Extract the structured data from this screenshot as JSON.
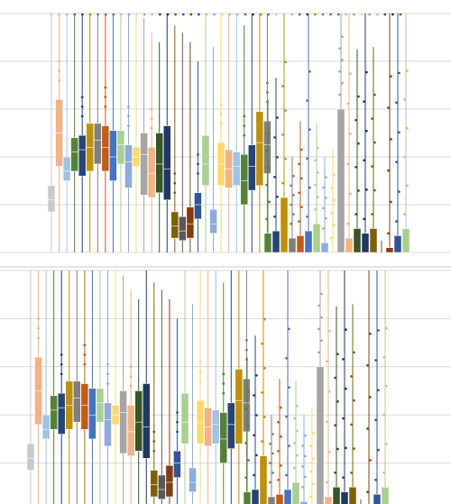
{
  "chart_data": [
    {
      "type": "boxplot",
      "title": "",
      "xlabel": "",
      "ylabel": "",
      "ylim": [
        0,
        100
      ],
      "grid": true,
      "legend": "none",
      "colors": [
        "#c9c9c9",
        "#f4b183",
        "#9dc3e6",
        "#548235",
        "#264478",
        "#bf9000",
        "#7f7f7f",
        "#c55a11",
        "#4472c4",
        "#a9d18e",
        "#8faadc",
        "#ffd966",
        "#a5a5a5",
        "#f4b183",
        "#375623",
        "#1f3864",
        "#7f6000",
        "#595959",
        "#843c0c",
        "#2f5597",
        "#a9d18e",
        "#8faadc",
        "#ffd966",
        "#f4b183",
        "#9dc3e6",
        "#548235",
        "#264478",
        "#bf9000",
        "#7f7f7f"
      ],
      "boxes": [
        {
          "q1": 17,
          "q3": 28,
          "med": 22,
          "min": 0,
          "max": 100,
          "mean": 23
        },
        {
          "q1": 36,
          "q3": 64,
          "med": 50,
          "min": 0,
          "max": 100,
          "mean": 48
        },
        {
          "q1": 30,
          "q3": 40,
          "med": 34,
          "min": 0,
          "max": 100,
          "mean": 35
        },
        {
          "q1": 34,
          "q3": 48,
          "med": 42,
          "min": 0,
          "max": 100,
          "mean": 41
        },
        {
          "q1": 32,
          "q3": 49,
          "med": 43,
          "min": 0,
          "max": 100,
          "mean": 41
        },
        {
          "q1": 34,
          "q3": 54,
          "med": 44,
          "min": 0,
          "max": 100,
          "mean": 44
        },
        {
          "q1": 37,
          "q3": 54,
          "med": 47,
          "min": 0,
          "max": 100,
          "mean": 46
        },
        {
          "q1": 34,
          "q3": 53,
          "med": 44,
          "min": 0,
          "max": 100,
          "mean": 44
        },
        {
          "q1": 30,
          "q3": 51,
          "med": 40,
          "min": 0,
          "max": 100,
          "mean": 40
        },
        {
          "q1": 37,
          "q3": 51,
          "med": 45,
          "min": 0,
          "max": 100,
          "mean": 45
        },
        {
          "q1": 27,
          "q3": 45,
          "med": 38,
          "min": 0,
          "max": 100,
          "mean": 37
        },
        {
          "q1": 36,
          "q3": 44,
          "med": 40,
          "min": 0,
          "max": 100,
          "mean": 40
        },
        {
          "q1": 24,
          "q3": 50,
          "med": 41,
          "min": 0,
          "max": 98,
          "mean": 39
        },
        {
          "q1": 23,
          "q3": 44,
          "med": 33,
          "min": 0,
          "max": 92,
          "mean": 33
        },
        {
          "q1": 25,
          "q3": 50,
          "med": 37,
          "min": 0,
          "max": 88,
          "mean": 37
        },
        {
          "q1": 22,
          "q3": 53,
          "med": 35,
          "min": 0,
          "max": 100,
          "mean": 36
        },
        {
          "q1": 6,
          "q3": 17,
          "med": 11,
          "min": 0,
          "max": 95,
          "mean": 11
        },
        {
          "q1": 5,
          "q3": 15,
          "med": 9,
          "min": 0,
          "max": 92,
          "mean": 10
        },
        {
          "q1": 6,
          "q3": 19,
          "med": 12,
          "min": 0,
          "max": 88,
          "mean": 12
        },
        {
          "q1": 14,
          "q3": 25,
          "med": 20,
          "min": 0,
          "max": 80,
          "mean": 20
        },
        {
          "q1": 28,
          "q3": 49,
          "med": 37,
          "min": 0,
          "max": 100,
          "mean": 38
        },
        {
          "q1": 8,
          "q3": 18,
          "med": 12,
          "min": 0,
          "max": 86,
          "mean": 12
        },
        {
          "q1": 28,
          "q3": 46,
          "med": 37,
          "min": 0,
          "max": 100,
          "mean": 37
        },
        {
          "q1": 27,
          "q3": 43,
          "med": 35,
          "min": 0,
          "max": 100,
          "mean": 35
        },
        {
          "q1": 28,
          "q3": 42,
          "med": 36,
          "min": 0,
          "max": 100,
          "mean": 36
        },
        {
          "q1": 20,
          "q3": 41,
          "med": 30,
          "min": 0,
          "max": 95,
          "mean": 30
        },
        {
          "q1": 26,
          "q3": 45,
          "med": 36,
          "min": 0,
          "max": 100,
          "mean": 36
        },
        {
          "q1": 28,
          "q3": 59,
          "med": 46,
          "min": 0,
          "max": 100,
          "mean": 45
        },
        {
          "q1": 33,
          "q3": 55,
          "med": 45,
          "min": 0,
          "max": 100,
          "mean": 45
        }
      ],
      "extra_series": [
        {
          "q1": 0,
          "q3": 8,
          "med": 2,
          "max": 64
        },
        {
          "q1": 0,
          "q3": 9,
          "med": 3,
          "max": 73
        },
        {
          "q1": 0,
          "q3": 23,
          "med": 3,
          "max": 100
        },
        {
          "q1": 0,
          "q3": 6,
          "med": 1,
          "max": 40
        },
        {
          "q1": 0,
          "q3": 7,
          "med": 2,
          "max": 55
        },
        {
          "q1": 0,
          "q3": 9,
          "med": 2,
          "max": 100
        },
        {
          "q1": 0,
          "q3": 12,
          "med": 2,
          "max": 54
        },
        {
          "q1": 0,
          "q3": 4,
          "med": 1,
          "max": 40
        },
        {
          "q1": 0,
          "q3": 0,
          "med": 0,
          "max": 43
        },
        {
          "q1": 0,
          "q3": 60,
          "med": 4,
          "max": 100
        },
        {
          "q1": 0,
          "q3": 6,
          "med": 2,
          "max": 100
        },
        {
          "q1": 0,
          "q3": 10,
          "med": 3,
          "max": 85
        },
        {
          "q1": 0,
          "q3": 8,
          "med": 1,
          "max": 100
        },
        {
          "q1": 0,
          "q3": 10,
          "med": 2,
          "max": 86
        },
        {
          "q1": 0,
          "q3": 0,
          "med": 0,
          "max": 5
        },
        {
          "q1": 0,
          "q3": 2,
          "med": 1,
          "max": 100
        },
        {
          "q1": 0,
          "q3": 7,
          "med": 3,
          "max": 100
        },
        {
          "q1": 0,
          "q3": 10,
          "med": 2,
          "max": 100
        }
      ]
    },
    {
      "type": "boxplot",
      "title": "",
      "xlabel": "",
      "ylabel": "",
      "ylim": [
        0,
        100
      ],
      "grid": true,
      "legend": "none"
    }
  ]
}
